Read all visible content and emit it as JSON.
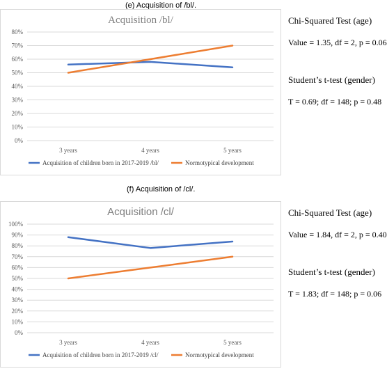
{
  "panel_e": {
    "caption": "(e) Acquisition of /bl/.",
    "stats": {
      "chi_title": "Chi-Squared Test (age)",
      "chi_value": "Value = 1.35, df = 2, p = 0.06",
      "t_title": "Student’s t-test (gender)",
      "t_value": "T = 0.69; df = 148; p = 0.48"
    }
  },
  "panel_f": {
    "caption": "(f) Acquisition of /cl/.",
    "stats": {
      "chi_title": "Chi-Squared Test (age)",
      "chi_value": "Value = 1.84, df = 2, p = 0.40",
      "t_title": "Student’s t-test (gender)",
      "t_value": "T = 1.83; df = 148; p = 0.06"
    }
  },
  "colors": {
    "blue": "#4472c4",
    "orange": "#ed7d31",
    "grid": "#d9d9d9",
    "title": "#7f7f7f"
  },
  "chart_data": [
    {
      "type": "line",
      "title": "Acquisition /bl/",
      "categories": [
        "3 years",
        "4 years",
        "5 years"
      ],
      "yticks": [
        "0%",
        "10%",
        "20%",
        "30%",
        "40%",
        "50%",
        "60%",
        "70%",
        "80%"
      ],
      "ylim": [
        0,
        80
      ],
      "grid": true,
      "legend_position": "bottom",
      "series": [
        {
          "name": "Acquisition of children born in 2017-2019 /bl/",
          "values": [
            56,
            58,
            54
          ],
          "color": "#4472c4"
        },
        {
          "name": "Normotypical development",
          "values": [
            50,
            60,
            70
          ],
          "color": "#ed7d31"
        }
      ]
    },
    {
      "type": "line",
      "title": "Acquisition /cl/",
      "categories": [
        "3 years",
        "4 years",
        "5 years"
      ],
      "yticks": [
        "0%",
        "10%",
        "20%",
        "30%",
        "40%",
        "50%",
        "60%",
        "70%",
        "80%",
        "90%",
        "100%"
      ],
      "ylim": [
        0,
        100
      ],
      "grid": true,
      "legend_position": "bottom",
      "series": [
        {
          "name": "Acquisition of children born in 2017-2019 /cl/",
          "values": [
            88,
            78,
            84
          ],
          "color": "#4472c4"
        },
        {
          "name": "Normotypical development",
          "values": [
            50,
            60,
            70
          ],
          "color": "#ed7d31"
        }
      ]
    }
  ]
}
